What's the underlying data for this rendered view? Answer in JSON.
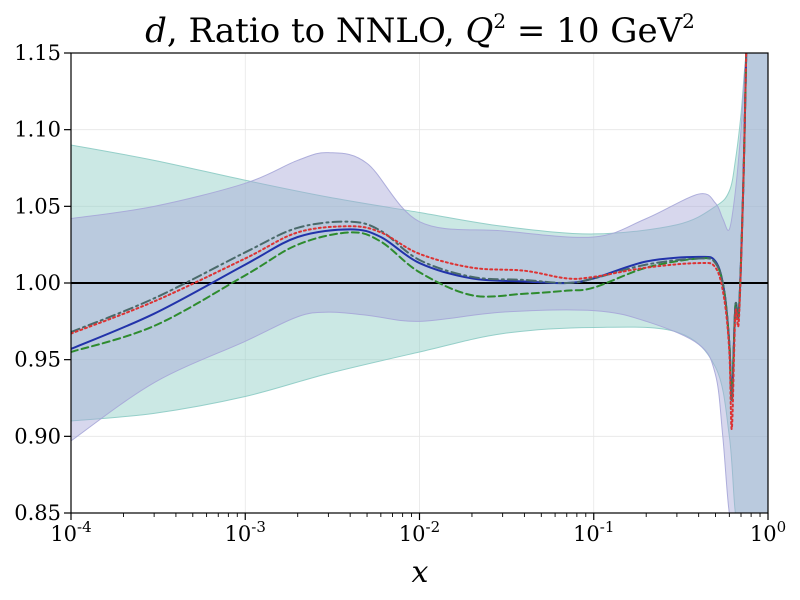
{
  "chart_data": {
    "type": "line",
    "title": "d, Ratio to NNLO, Q^2 = 10 GeV^2",
    "title_parts": {
      "var": "d",
      "text": ", Ratio to NNLO, ",
      "q": "Q",
      "eq": " = 10 GeV"
    },
    "xlabel": "x",
    "xscale": "log",
    "xlim": [
      0.0001,
      1
    ],
    "ylim": [
      0.85,
      1.15
    ],
    "x_ticks": [
      {
        "base": "10",
        "exp": "-4",
        "value": 0.0001
      },
      {
        "base": "10",
        "exp": "-3",
        "value": 0.001
      },
      {
        "base": "10",
        "exp": "-2",
        "value": 0.01
      },
      {
        "base": "10",
        "exp": "-1",
        "value": 0.1
      },
      {
        "base": "10",
        "exp": "0",
        "value": 1
      }
    ],
    "y_ticks": [
      "0.85",
      "0.90",
      "0.95",
      "1.00",
      "1.05",
      "1.10",
      "1.15"
    ],
    "grid": true,
    "reference_line": 1.0,
    "bands": [
      {
        "name": "teal band",
        "color": "#8ccbc4",
        "x": [
          0.0001,
          0.0003,
          0.001,
          0.003,
          0.01,
          0.03,
          0.1,
          0.3,
          0.5,
          0.6,
          0.65,
          0.7,
          0.75,
          0.8,
          1
        ],
        "upper": [
          1.09,
          1.08,
          1.067,
          1.056,
          1.046,
          1.037,
          1.032,
          1.038,
          1.05,
          1.06,
          1.08,
          1.11,
          1.15,
          1.15,
          1.15
        ],
        "lower": [
          0.91,
          0.915,
          0.926,
          0.941,
          0.955,
          0.967,
          0.971,
          0.968,
          0.945,
          0.9,
          0.85,
          0.85,
          0.85,
          0.85,
          0.85
        ]
      },
      {
        "name": "lavender band",
        "color": "#a6a6d8",
        "x": [
          0.0001,
          0.0003,
          0.001,
          0.002,
          0.003,
          0.005,
          0.01,
          0.03,
          0.1,
          0.2,
          0.4,
          0.5,
          0.55,
          0.6,
          0.65,
          0.7,
          0.75,
          0.8,
          1
        ],
        "upper": [
          1.042,
          1.05,
          1.065,
          1.08,
          1.085,
          1.078,
          1.04,
          1.034,
          1.03,
          1.042,
          1.058,
          1.052,
          1.042,
          1.035,
          1.06,
          1.1,
          1.15,
          1.15,
          1.15
        ],
        "lower": [
          0.897,
          0.935,
          0.962,
          0.978,
          0.981,
          0.979,
          0.975,
          0.981,
          0.982,
          0.975,
          0.96,
          0.94,
          0.9,
          0.85,
          0.85,
          0.85,
          0.85,
          0.85,
          0.85
        ]
      }
    ],
    "series": [
      {
        "name": "solid blue",
        "color": "#2233aa",
        "style": "solid",
        "x": [
          0.0001,
          0.0003,
          0.001,
          0.002,
          0.004,
          0.006,
          0.01,
          0.02,
          0.04,
          0.07,
          0.1,
          0.2,
          0.4,
          0.5,
          0.56,
          0.6,
          0.62,
          0.65,
          0.68,
          0.72,
          0.75
        ],
        "y": [
          0.957,
          0.98,
          1.012,
          1.03,
          1.035,
          1.03,
          1.013,
          1.003,
          1.001,
          1.0,
          1.003,
          1.014,
          1.017,
          1.014,
          0.995,
          0.96,
          0.925,
          0.985,
          0.98,
          1.06,
          1.15
        ]
      },
      {
        "name": "dashed green",
        "color": "#2e8b2e",
        "style": "dashed",
        "x": [
          0.0001,
          0.0003,
          0.001,
          0.002,
          0.004,
          0.006,
          0.01,
          0.02,
          0.04,
          0.07,
          0.1,
          0.2,
          0.4,
          0.5,
          0.56,
          0.6,
          0.62,
          0.65,
          0.68,
          0.72,
          0.75
        ],
        "y": [
          0.955,
          0.972,
          1.005,
          1.025,
          1.033,
          1.027,
          1.007,
          0.992,
          0.993,
          0.995,
          0.997,
          1.01,
          1.016,
          1.013,
          0.995,
          0.96,
          0.925,
          0.985,
          0.98,
          1.06,
          1.15
        ]
      },
      {
        "name": "dash-dot gray",
        "color": "#4a6a6a",
        "style": "dashdot",
        "x": [
          0.0001,
          0.0003,
          0.001,
          0.002,
          0.004,
          0.006,
          0.01,
          0.02,
          0.04,
          0.07,
          0.1,
          0.2,
          0.4,
          0.5,
          0.56,
          0.6,
          0.62,
          0.65,
          0.68,
          0.72,
          0.75
        ],
        "y": [
          0.968,
          0.99,
          1.02,
          1.036,
          1.04,
          1.034,
          1.015,
          1.004,
          1.002,
          1.0,
          1.003,
          1.012,
          1.016,
          1.013,
          0.995,
          0.96,
          0.923,
          0.985,
          0.98,
          1.06,
          1.15
        ]
      },
      {
        "name": "dotted red",
        "color": "#dd3333",
        "style": "dotted",
        "x": [
          0.0001,
          0.0003,
          0.001,
          0.002,
          0.004,
          0.006,
          0.01,
          0.02,
          0.04,
          0.07,
          0.1,
          0.2,
          0.4,
          0.5,
          0.56,
          0.6,
          0.62,
          0.65,
          0.68,
          0.72,
          0.75
        ],
        "y": [
          0.967,
          0.988,
          1.016,
          1.033,
          1.037,
          1.033,
          1.019,
          1.01,
          1.008,
          1.003,
          1.004,
          1.01,
          1.013,
          1.01,
          0.99,
          0.955,
          0.905,
          0.98,
          0.975,
          1.06,
          1.15
        ]
      }
    ]
  }
}
